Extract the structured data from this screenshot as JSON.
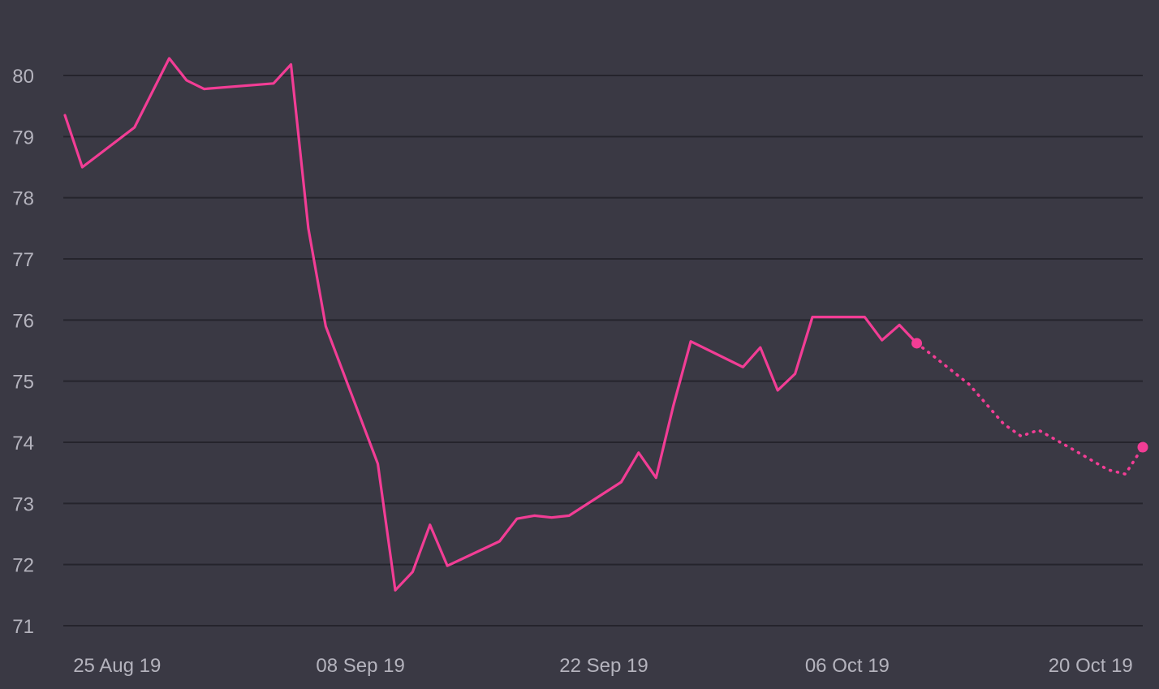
{
  "chart_data": {
    "type": "line",
    "title": "",
    "xlabel": "",
    "ylabel": "",
    "ylim": [
      71,
      80
    ],
    "y_ticks": [
      71,
      72,
      73,
      74,
      75,
      76,
      77,
      78,
      79,
      80
    ],
    "x_ticks": [
      {
        "date": "2019-08-25",
        "label": "25 Aug 19"
      },
      {
        "date": "2019-09-08",
        "label": "08 Sep 19"
      },
      {
        "date": "2019-09-22",
        "label": "22 Sep 19"
      },
      {
        "date": "2019-10-06",
        "label": "06 Oct 19"
      },
      {
        "date": "2019-10-20",
        "label": "20 Oct 19"
      }
    ],
    "xlim": [
      "2019-08-22",
      "2019-10-23"
    ],
    "grid": true,
    "legend": "none",
    "series": [
      {
        "style": "solid",
        "color": "#f23d95",
        "points": [
          {
            "x": "2019-08-22",
            "y": 79.35
          },
          {
            "x": "2019-08-23",
            "y": 78.5
          },
          {
            "x": "2019-08-26",
            "y": 79.15
          },
          {
            "x": "2019-08-28",
            "y": 80.28
          },
          {
            "x": "2019-08-29",
            "y": 79.92
          },
          {
            "x": "2019-08-30",
            "y": 79.78
          },
          {
            "x": "2019-09-03",
            "y": 79.87
          },
          {
            "x": "2019-09-04",
            "y": 80.18
          },
          {
            "x": "2019-09-05",
            "y": 77.5
          },
          {
            "x": "2019-09-06",
            "y": 75.9
          },
          {
            "x": "2019-09-09",
            "y": 73.65
          },
          {
            "x": "2019-09-10",
            "y": 71.58
          },
          {
            "x": "2019-09-11",
            "y": 71.88
          },
          {
            "x": "2019-09-12",
            "y": 72.65
          },
          {
            "x": "2019-09-13",
            "y": 71.98
          },
          {
            "x": "2019-09-16",
            "y": 72.38
          },
          {
            "x": "2019-09-17",
            "y": 72.75
          },
          {
            "x": "2019-09-18",
            "y": 72.8
          },
          {
            "x": "2019-09-19",
            "y": 72.77
          },
          {
            "x": "2019-09-20",
            "y": 72.8
          },
          {
            "x": "2019-09-23",
            "y": 73.35
          },
          {
            "x": "2019-09-24",
            "y": 73.83
          },
          {
            "x": "2019-09-25",
            "y": 73.42
          },
          {
            "x": "2019-09-26",
            "y": 74.6
          },
          {
            "x": "2019-09-27",
            "y": 75.65
          },
          {
            "x": "2019-09-30",
            "y": 75.23
          },
          {
            "x": "2019-10-01",
            "y": 75.55
          },
          {
            "x": "2019-10-02",
            "y": 74.85
          },
          {
            "x": "2019-10-03",
            "y": 75.12
          },
          {
            "x": "2019-10-04",
            "y": 76.05
          },
          {
            "x": "2019-10-07",
            "y": 76.05
          },
          {
            "x": "2019-10-08",
            "y": 75.67
          },
          {
            "x": "2019-10-09",
            "y": 75.92
          },
          {
            "x": "2019-10-10",
            "y": 75.62
          }
        ]
      },
      {
        "style": "dotted",
        "color": "#f23d95",
        "points": [
          {
            "x": "2019-10-10",
            "y": 75.62
          },
          {
            "x": "2019-10-11",
            "y": 75.4
          },
          {
            "x": "2019-10-13",
            "y": 74.95
          },
          {
            "x": "2019-10-15",
            "y": 74.3
          },
          {
            "x": "2019-10-16",
            "y": 74.1
          },
          {
            "x": "2019-10-17",
            "y": 74.2
          },
          {
            "x": "2019-10-19",
            "y": 73.88
          },
          {
            "x": "2019-10-21",
            "y": 73.55
          },
          {
            "x": "2019-10-22",
            "y": 73.48
          },
          {
            "x": "2019-10-23",
            "y": 73.92
          }
        ]
      }
    ]
  },
  "theme": {
    "background": "#3a3944",
    "grid_color": "#25242c",
    "tick_color": "#b4b3bd",
    "accent": "#f23d95"
  }
}
